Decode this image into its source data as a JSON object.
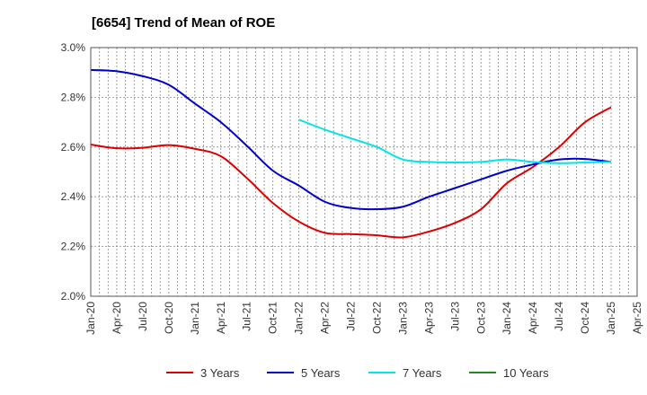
{
  "chart_data": {
    "type": "line",
    "title": "[6654]  Trend of Mean of ROE",
    "xlabel": "",
    "ylabel": "",
    "ylim": [
      2.0,
      3.0
    ],
    "yticks": [
      "2.0%",
      "2.2%",
      "2.4%",
      "2.6%",
      "2.8%",
      "3.0%"
    ],
    "yvalues": [
      2.0,
      2.2,
      2.4,
      2.6,
      2.8,
      3.0
    ],
    "xticks": [
      "Jan-20",
      "Apr-20",
      "Jul-20",
      "Oct-20",
      "Jan-21",
      "Apr-21",
      "Jul-21",
      "Oct-21",
      "Jan-22",
      "Apr-22",
      "Jul-22",
      "Oct-22",
      "Jan-23",
      "Apr-23",
      "Jul-23",
      "Oct-23",
      "Jan-24",
      "Apr-24",
      "Jul-24",
      "Oct-24",
      "Jan-25",
      "Apr-25"
    ],
    "grid": true,
    "legend_position": "bottom",
    "series": [
      {
        "name": "3 Years",
        "color": "#dd0000",
        "points": [
          [
            "Jan-20",
            2.61
          ],
          [
            "Apr-20",
            2.595
          ],
          [
            "Jul-20",
            2.597
          ],
          [
            "Oct-20",
            2.608
          ],
          [
            "Jan-21",
            2.593
          ],
          [
            "Apr-21",
            2.563
          ],
          [
            "Jul-21",
            2.475
          ],
          [
            "Oct-21",
            2.375
          ],
          [
            "Jan-22",
            2.3
          ],
          [
            "Apr-22",
            2.255
          ],
          [
            "Jul-22",
            2.25
          ],
          [
            "Oct-22",
            2.245
          ],
          [
            "Jan-23",
            2.237
          ],
          [
            "Apr-23",
            2.26
          ],
          [
            "Jul-23",
            2.295
          ],
          [
            "Oct-23",
            2.35
          ],
          [
            "Jan-24",
            2.455
          ],
          [
            "Apr-24",
            2.52
          ],
          [
            "Jul-24",
            2.6
          ],
          [
            "Oct-24",
            2.7
          ],
          [
            "Jan-25",
            2.76
          ]
        ]
      },
      {
        "name": "5 Years",
        "color": "#0000cc",
        "points": [
          [
            "Jan-20",
            2.91
          ],
          [
            "Apr-20",
            2.905
          ],
          [
            "Jul-20",
            2.885
          ],
          [
            "Oct-20",
            2.85
          ],
          [
            "Jan-21",
            2.775
          ],
          [
            "Apr-21",
            2.7
          ],
          [
            "Jul-21",
            2.605
          ],
          [
            "Oct-21",
            2.505
          ],
          [
            "Jan-22",
            2.445
          ],
          [
            "Apr-22",
            2.38
          ],
          [
            "Jul-22",
            2.355
          ],
          [
            "Oct-22",
            2.35
          ],
          [
            "Jan-23",
            2.36
          ],
          [
            "Apr-23",
            2.4
          ],
          [
            "Jul-23",
            2.435
          ],
          [
            "Oct-23",
            2.47
          ],
          [
            "Jan-24",
            2.505
          ],
          [
            "Apr-24",
            2.53
          ],
          [
            "Jul-24",
            2.55
          ],
          [
            "Oct-24",
            2.552
          ],
          [
            "Jan-25",
            2.54
          ]
        ]
      },
      {
        "name": "7 Years",
        "color": "#00e5e5",
        "points": [
          [
            "Jan-22",
            2.71
          ],
          [
            "Apr-22",
            2.67
          ],
          [
            "Jul-22",
            2.635
          ],
          [
            "Oct-22",
            2.6
          ],
          [
            "Jan-23",
            2.55
          ],
          [
            "Apr-23",
            2.54
          ],
          [
            "Jul-23",
            2.538
          ],
          [
            "Oct-23",
            2.54
          ],
          [
            "Jan-24",
            2.55
          ],
          [
            "Apr-24",
            2.54
          ],
          [
            "Jul-24",
            2.535
          ],
          [
            "Oct-24",
            2.538
          ],
          [
            "Jan-25",
            2.54
          ]
        ]
      },
      {
        "name": "10 Years",
        "color": "#228b22",
        "points": []
      }
    ]
  }
}
